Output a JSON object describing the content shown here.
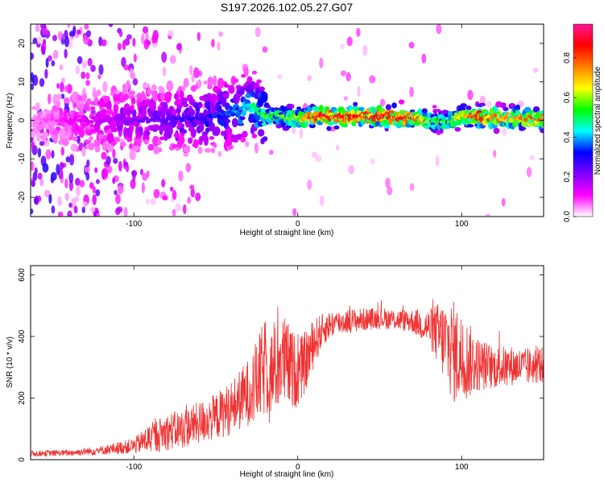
{
  "title": "S197.2026.102.05.27.G07",
  "chart_data": [
    {
      "type": "heatmap",
      "panel": "top",
      "xlabel": "Height of straight line (km)",
      "ylabel": "Frequency (Hz)",
      "xlim": [
        -163,
        150
      ],
      "ylim": [
        -25,
        25
      ],
      "xticks": [
        -100,
        0,
        100
      ],
      "xtick_labels": [
        "-100",
        "0",
        "100"
      ],
      "yticks": [
        -20,
        -10,
        0,
        10,
        20
      ],
      "ytick_labels": [
        "-20",
        "-10",
        "0",
        "10",
        "20"
      ],
      "colorbar": {
        "label": "Normalized spectral amplitude",
        "range": [
          0,
          0.97
        ],
        "ticks": [
          0.0,
          0.2,
          0.4,
          0.6,
          0.8
        ],
        "tick_labels": [
          "0.0",
          "0.2",
          "0.4",
          "0.6",
          "0.8"
        ],
        "colors": [
          "#ffffff",
          "#ff00ff",
          "#7f00ff",
          "#0000ff",
          "#00ffff",
          "#00ff00",
          "#ffff00",
          "#ff7f00",
          "#ff0000",
          "#ff1493"
        ]
      },
      "ridge": {
        "description_units": "Hz",
        "x": [
          -163,
          -100,
          -60,
          -40,
          -30,
          -20,
          -10,
          0,
          10,
          50,
          70,
          80,
          90,
          100,
          110,
          130,
          150
        ],
        "center": [
          0,
          0,
          0.5,
          2,
          3.5,
          1.5,
          1,
          0.5,
          1,
          1,
          0.5,
          0,
          -0.5,
          1,
          1,
          0.5,
          0.5
        ],
        "amplitude": [
          0.05,
          0.22,
          0.3,
          0.38,
          0.45,
          0.55,
          0.6,
          0.65,
          0.9,
          0.92,
          0.85,
          0.6,
          0.55,
          0.7,
          0.88,
          0.75,
          0.8
        ]
      }
    },
    {
      "type": "line",
      "panel": "bottom",
      "xlabel": "Height of straight line (km)",
      "ylabel": "SNR (10 * v/v)",
      "xlim": [
        -163,
        150
      ],
      "ylim": [
        0,
        630
      ],
      "xticks": [
        -100,
        0,
        100
      ],
      "xtick_labels": [
        "-100",
        "0",
        "100"
      ],
      "yticks": [
        0,
        200,
        400,
        600
      ],
      "ytick_labels": [
        "0",
        "200",
        "400",
        "600"
      ],
      "series": [
        {
          "name": "SNR",
          "color": "#f03232",
          "x": [
            -163,
            -140,
            -120,
            -100,
            -90,
            -80,
            -70,
            -60,
            -50,
            -40,
            -30,
            -25,
            -20,
            -15,
            -10,
            -5,
            0,
            5,
            10,
            15,
            20,
            30,
            40,
            50,
            60,
            70,
            80,
            85,
            90,
            95,
            100,
            105,
            110,
            120,
            130,
            140,
            150
          ],
          "y": [
            20,
            22,
            30,
            45,
            70,
            90,
            100,
            120,
            140,
            170,
            220,
            250,
            300,
            280,
            330,
            300,
            280,
            320,
            380,
            420,
            440,
            450,
            455,
            460,
            455,
            450,
            430,
            410,
            380,
            350,
            330,
            320,
            310,
            300,
            305,
            300,
            310
          ],
          "spread": [
            10,
            10,
            15,
            25,
            50,
            60,
            65,
            70,
            75,
            90,
            110,
            140,
            160,
            140,
            160,
            140,
            110,
            100,
            80,
            55,
            45,
            40,
            38,
            35,
            35,
            40,
            60,
            100,
            140,
            170,
            150,
            120,
            90,
            70,
            65,
            60,
            60
          ]
        }
      ]
    }
  ]
}
